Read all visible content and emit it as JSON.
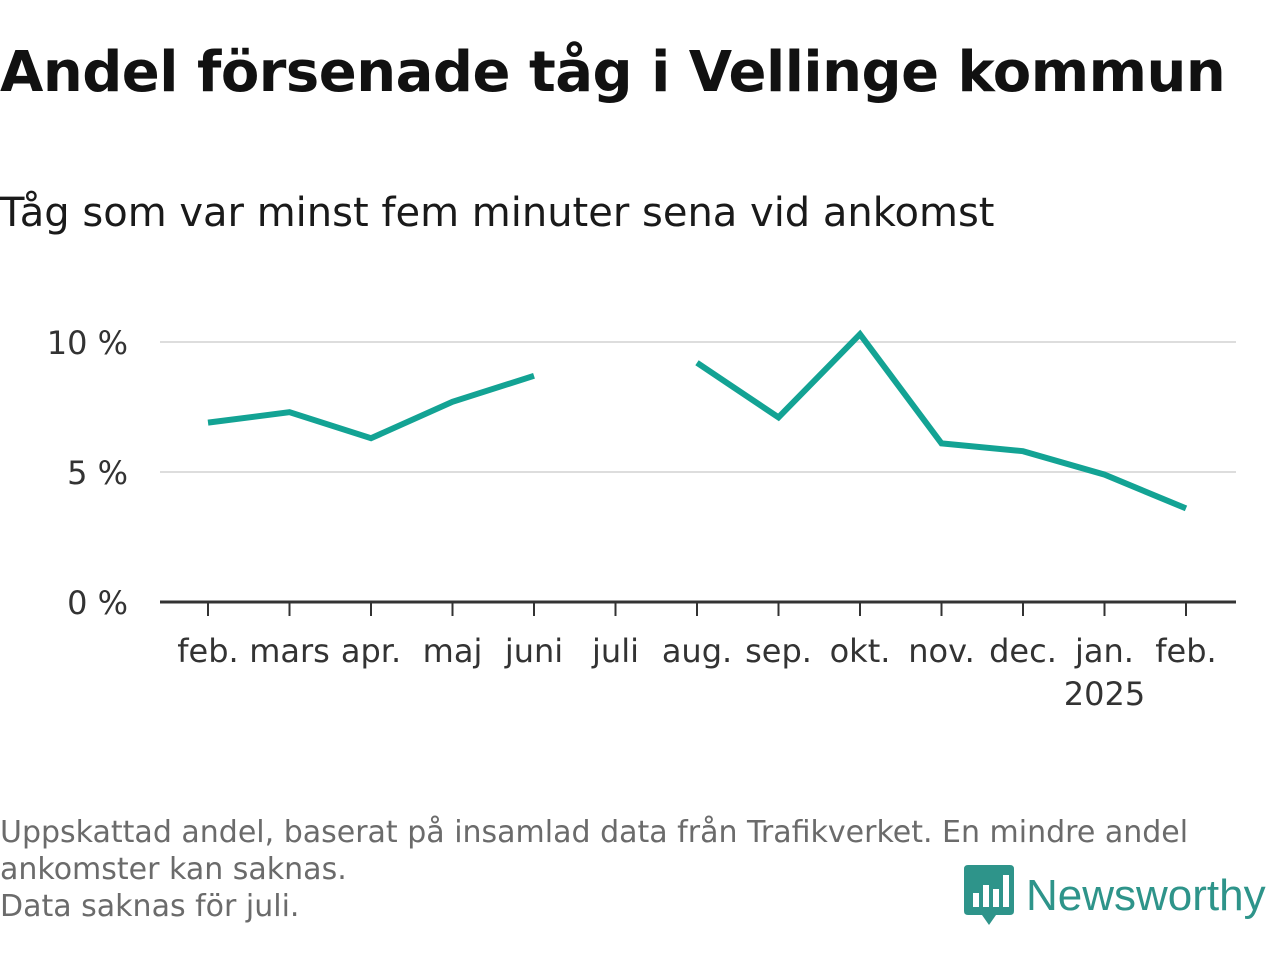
{
  "title": "Andel försenade tåg i Vellinge kommun",
  "subtitle": "Tåg som var minst fem minuter sena vid ankomst",
  "footnote": {
    "line1": "Uppskattad andel, baserat på insamlad data från Trafikverket. En mindre andel",
    "line2": "ankomster kan saknas.",
    "line3": "Data saknas för juli."
  },
  "logo": {
    "text": "Newsworthy",
    "icon": "newsworthy-bar-chart-icon",
    "color": "#2e948a"
  },
  "chart_data": {
    "type": "line",
    "categories": [
      "feb.",
      "mars",
      "apr.",
      "maj",
      "juni",
      "juli",
      "aug.",
      "sep.",
      "okt.",
      "nov.",
      "dec.",
      "jan.",
      "feb."
    ],
    "year_label": "2025",
    "year_label_under": "jan.",
    "series": [
      {
        "values": [
          6.9,
          7.3,
          6.3,
          7.7,
          8.7,
          null,
          9.2,
          7.1,
          10.3,
          6.1,
          5.8,
          4.9,
          3.6
        ],
        "color": "#13a394"
      }
    ],
    "yticks": [
      0,
      5,
      10
    ],
    "ytick_labels": [
      "0 %",
      "5 %",
      "10 %"
    ],
    "ylim": [
      0,
      10.5
    ],
    "grid": true,
    "xlabel": "",
    "ylabel": ""
  }
}
